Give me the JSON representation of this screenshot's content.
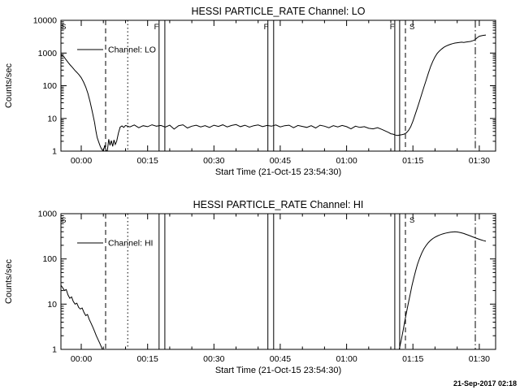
{
  "page": {
    "background": "#ffffff",
    "foreground": "#000000",
    "timestamp": "21-Sep-2017 02:18"
  },
  "chart_data": [
    {
      "id": "lo",
      "type": "line",
      "title": "HESSI PARTICLE_RATE Channel: LO",
      "xlabel": "Start Time (21-Oct-15 23:54:30)",
      "ylabel": "Counts/sec",
      "yscale": "log",
      "grid": false,
      "ylim": [
        1,
        10000
      ],
      "yticks": [
        {
          "value": 1,
          "label": "1"
        },
        {
          "value": 10,
          "label": "10"
        },
        {
          "value": 100,
          "label": "100"
        },
        {
          "value": 1000,
          "label": "1000"
        },
        {
          "value": 10000,
          "label": "10000"
        }
      ],
      "xlim_minutes": [
        -4.6,
        93.7
      ],
      "xminor_step_minutes": 5,
      "xticks": [
        {
          "minute": 0,
          "label": "00:00"
        },
        {
          "minute": 15,
          "label": "00:15"
        },
        {
          "minute": 30,
          "label": "00:30"
        },
        {
          "minute": 45,
          "label": "00:45"
        },
        {
          "minute": 60,
          "label": "01:00"
        },
        {
          "minute": 75,
          "label": "01:15"
        },
        {
          "minute": 90,
          "label": "01:30"
        }
      ],
      "legend": {
        "label": "Channel: LO"
      },
      "vlines_minutes": [
        {
          "minute": 5.5,
          "style": "dashed"
        },
        {
          "minute": 10.5,
          "style": "dotted"
        },
        {
          "minute": 17.6,
          "style": "solid"
        },
        {
          "minute": 18.9,
          "style": "solid"
        },
        {
          "minute": 42.2,
          "style": "solid"
        },
        {
          "minute": 43.5,
          "style": "solid"
        },
        {
          "minute": 70.9,
          "style": "solid"
        },
        {
          "minute": 72.0,
          "style": "solid"
        },
        {
          "minute": 73.3,
          "style": "dashed"
        },
        {
          "minute": 89.1,
          "style": "dashdot"
        }
      ],
      "flags": [
        {
          "minute": -4.0,
          "label": "S"
        },
        {
          "minute": 17.0,
          "label": "F"
        },
        {
          "minute": 41.8,
          "label": "F"
        },
        {
          "minute": 70.3,
          "label": "F"
        },
        {
          "minute": 74.8,
          "label": "S"
        }
      ],
      "series": [
        {
          "name": "Channel: LO",
          "color": "#000000",
          "points_min_counts": [
            [
              -4.6,
              880
            ],
            [
              -4,
              800
            ],
            [
              -3.5,
              640
            ],
            [
              -3,
              520
            ],
            [
              -2.5,
              430
            ],
            [
              -2,
              360
            ],
            [
              -1.5,
              300
            ],
            [
              -1,
              255
            ],
            [
              -0.5,
              215
            ],
            [
              0,
              175
            ],
            [
              0.5,
              130
            ],
            [
              1,
              92
            ],
            [
              1.5,
              58
            ],
            [
              2,
              32
            ],
            [
              2.5,
              16
            ],
            [
              3,
              7.5
            ],
            [
              3.3,
              4.2
            ],
            [
              3.6,
              2.6
            ],
            [
              4,
              1.8
            ],
            [
              4.3,
              1.4
            ],
            [
              4.6,
              1.15
            ],
            [
              5,
              1
            ],
            [
              5.3,
              1.5
            ],
            [
              5.6,
              1.05
            ],
            [
              5.9,
              1
            ],
            [
              6.2,
              2.3
            ],
            [
              6.5,
              1.5
            ],
            [
              6.8,
              2.1
            ],
            [
              7.1,
              1.4
            ],
            [
              7.4,
              2.2
            ],
            [
              7.7,
              1.6
            ],
            [
              8,
              2
            ],
            [
              8.4,
              3.6
            ],
            [
              8.8,
              5.4
            ],
            [
              9.2,
              5.9
            ],
            [
              9.6,
              5.3
            ],
            [
              10,
              6.1
            ],
            [
              11,
              5.5
            ],
            [
              12,
              6.3
            ],
            [
              13,
              5.2
            ],
            [
              14,
              6
            ],
            [
              15,
              5.6
            ],
            [
              16,
              6.4
            ],
            [
              17,
              5.8
            ],
            [
              18,
              6.1
            ],
            [
              19,
              5.4
            ],
            [
              20,
              6.2
            ],
            [
              21,
              4.7
            ],
            [
              22,
              6
            ],
            [
              23,
              6.4
            ],
            [
              24,
              5.1
            ],
            [
              25,
              5.8
            ],
            [
              26,
              6.2
            ],
            [
              27,
              5.5
            ],
            [
              28,
              6
            ],
            [
              29,
              5.3
            ],
            [
              30,
              6.2
            ],
            [
              31,
              5.7
            ],
            [
              32,
              6.4
            ],
            [
              33,
              5.5
            ],
            [
              34,
              6.1
            ],
            [
              35,
              6.5
            ],
            [
              36,
              5.6
            ],
            [
              37,
              6.2
            ],
            [
              38,
              5.4
            ],
            [
              39,
              6
            ],
            [
              40,
              6.3
            ],
            [
              41,
              5.6
            ],
            [
              42,
              6.1
            ],
            [
              43,
              5.8
            ],
            [
              44,
              6.3
            ],
            [
              45,
              5.5
            ],
            [
              46,
              6
            ],
            [
              47,
              6.2
            ],
            [
              48,
              5.2
            ],
            [
              49,
              6.1
            ],
            [
              50,
              5.7
            ],
            [
              51,
              5.3
            ],
            [
              52,
              6
            ],
            [
              53,
              5.1
            ],
            [
              54,
              6.2
            ],
            [
              55,
              5.8
            ],
            [
              56,
              5.2
            ],
            [
              57,
              6
            ],
            [
              58,
              5.5
            ],
            [
              59,
              6.1
            ],
            [
              60,
              5.6
            ],
            [
              61,
              4.8
            ],
            [
              62,
              5.8
            ],
            [
              63,
              5.3
            ],
            [
              64,
              5.6
            ],
            [
              65,
              5
            ],
            [
              66,
              4.8
            ],
            [
              67,
              5.2
            ],
            [
              68,
              4.6
            ],
            [
              69,
              4
            ],
            [
              69.5,
              3.7
            ],
            [
              70,
              3.4
            ],
            [
              70.5,
              3.3
            ],
            [
              71,
              3.1
            ],
            [
              71.5,
              3
            ],
            [
              72,
              3.1
            ],
            [
              72.5,
              3.2
            ],
            [
              73,
              3.3
            ],
            [
              73.5,
              3.6
            ],
            [
              74,
              4.3
            ],
            [
              74.5,
              5.6
            ],
            [
              75,
              8.2
            ],
            [
              75.5,
              13
            ],
            [
              76,
              21
            ],
            [
              76.5,
              34
            ],
            [
              77,
              56
            ],
            [
              77.5,
              92
            ],
            [
              78,
              150
            ],
            [
              78.5,
              245
            ],
            [
              79,
              385
            ],
            [
              79.5,
              560
            ],
            [
              80,
              760
            ],
            [
              80.5,
              980
            ],
            [
              81,
              1160
            ],
            [
              81.5,
              1330
            ],
            [
              82,
              1500
            ],
            [
              82.5,
              1630
            ],
            [
              83,
              1750
            ],
            [
              83.5,
              1850
            ],
            [
              84,
              1940
            ],
            [
              84.5,
              2010
            ],
            [
              85,
              2060
            ],
            [
              85.5,
              2110
            ],
            [
              86,
              2150
            ],
            [
              86.5,
              2110
            ],
            [
              87,
              2160
            ],
            [
              87.5,
              2210
            ],
            [
              88,
              2260
            ],
            [
              88.5,
              2360
            ],
            [
              89,
              2520
            ],
            [
              89.5,
              2900
            ],
            [
              90,
              3250
            ],
            [
              90.8,
              3450
            ],
            [
              91.5,
              3550
            ]
          ]
        }
      ]
    },
    {
      "id": "hi",
      "type": "line",
      "title": "HESSI PARTICLE_RATE Channel: HI",
      "xlabel": "Start Time (21-Oct-15 23:54:30)",
      "ylabel": "Counts/sec",
      "yscale": "log",
      "grid": false,
      "ylim": [
        1,
        1000
      ],
      "yticks": [
        {
          "value": 1,
          "label": "1"
        },
        {
          "value": 10,
          "label": "10"
        },
        {
          "value": 100,
          "label": "100"
        },
        {
          "value": 1000,
          "label": "1000"
        }
      ],
      "xlim_minutes": [
        -4.6,
        93.7
      ],
      "xminor_step_minutes": 5,
      "xticks": [
        {
          "minute": 0,
          "label": "00:00"
        },
        {
          "minute": 15,
          "label": "00:15"
        },
        {
          "minute": 30,
          "label": "00:30"
        },
        {
          "minute": 45,
          "label": "00:45"
        },
        {
          "minute": 60,
          "label": "01:00"
        },
        {
          "minute": 75,
          "label": "01:15"
        },
        {
          "minute": 90,
          "label": "01:30"
        }
      ],
      "legend": {
        "label": "Channel: HI"
      },
      "vlines_minutes": [
        {
          "minute": 5.5,
          "style": "dashed"
        },
        {
          "minute": 10.5,
          "style": "dotted"
        },
        {
          "minute": 17.6,
          "style": "solid"
        },
        {
          "minute": 18.9,
          "style": "solid"
        },
        {
          "minute": 42.2,
          "style": "solid"
        },
        {
          "minute": 43.5,
          "style": "solid"
        },
        {
          "minute": 70.9,
          "style": "solid"
        },
        {
          "minute": 72.0,
          "style": "solid"
        },
        {
          "minute": 73.3,
          "style": "dashed"
        },
        {
          "minute": 89.1,
          "style": "dashdot"
        }
      ],
      "flags": [
        {
          "minute": -4.0,
          "label": "S"
        },
        {
          "minute": 74.8,
          "label": "S"
        }
      ],
      "series": [
        {
          "name": "Channel: HI",
          "color": "#000000",
          "points_min_counts": [
            [
              -4.6,
              26
            ],
            [
              -4.2,
              23
            ],
            [
              -3.8,
              20
            ],
            [
              -3.4,
              21
            ],
            [
              -3,
              16
            ],
            [
              -2.6,
              13.5
            ],
            [
              -2.2,
              14.5
            ],
            [
              -1.8,
              11.5
            ],
            [
              -1.4,
              10
            ],
            [
              -1,
              10.5
            ],
            [
              -0.6,
              8.5
            ],
            [
              -0.2,
              7.8
            ],
            [
              0.2,
              8.2
            ],
            [
              0.6,
              6.6
            ],
            [
              1,
              5.6
            ],
            [
              1.4,
              5.9
            ],
            [
              1.8,
              4.6
            ],
            [
              2.2,
              3.8
            ],
            [
              2.6,
              3.1
            ],
            [
              3,
              2.5
            ],
            [
              3.4,
              2
            ],
            [
              3.8,
              1.65
            ],
            [
              4.2,
              1.35
            ],
            [
              4.6,
              1.1
            ],
            [
              5,
              0.9
            ],
            [
              5.4,
              0.75
            ],
            [
              71.6,
              0.8
            ],
            [
              72,
              1.1
            ],
            [
              72.4,
              1.7
            ],
            [
              72.8,
              2.7
            ],
            [
              73.2,
              4.4
            ],
            [
              73.6,
              7
            ],
            [
              74,
              11
            ],
            [
              74.4,
              17
            ],
            [
              74.8,
              26
            ],
            [
              75.2,
              38
            ],
            [
              75.6,
              54
            ],
            [
              76,
              75
            ],
            [
              76.5,
              103
            ],
            [
              77,
              135
            ],
            [
              77.5,
              168
            ],
            [
              78,
              200
            ],
            [
              78.5,
              230
            ],
            [
              79,
              258
            ],
            [
              79.5,
              282
            ],
            [
              80,
              303
            ],
            [
              80.5,
              321
            ],
            [
              81,
              337
            ],
            [
              81.5,
              351
            ],
            [
              82,
              363
            ],
            [
              82.5,
              374
            ],
            [
              83,
              383
            ],
            [
              83.5,
              390
            ],
            [
              84,
              395
            ],
            [
              84.5,
              397
            ],
            [
              85,
              394
            ],
            [
              85.5,
              387
            ],
            [
              86,
              377
            ],
            [
              86.5,
              364
            ],
            [
              87,
              350
            ],
            [
              87.5,
              336
            ],
            [
              88,
              322
            ],
            [
              88.5,
              308
            ],
            [
              89,
              295
            ],
            [
              89.5,
              283
            ],
            [
              90,
              272
            ],
            [
              90.5,
              262
            ],
            [
              91,
              253
            ],
            [
              91.5,
              246
            ]
          ]
        }
      ]
    }
  ]
}
